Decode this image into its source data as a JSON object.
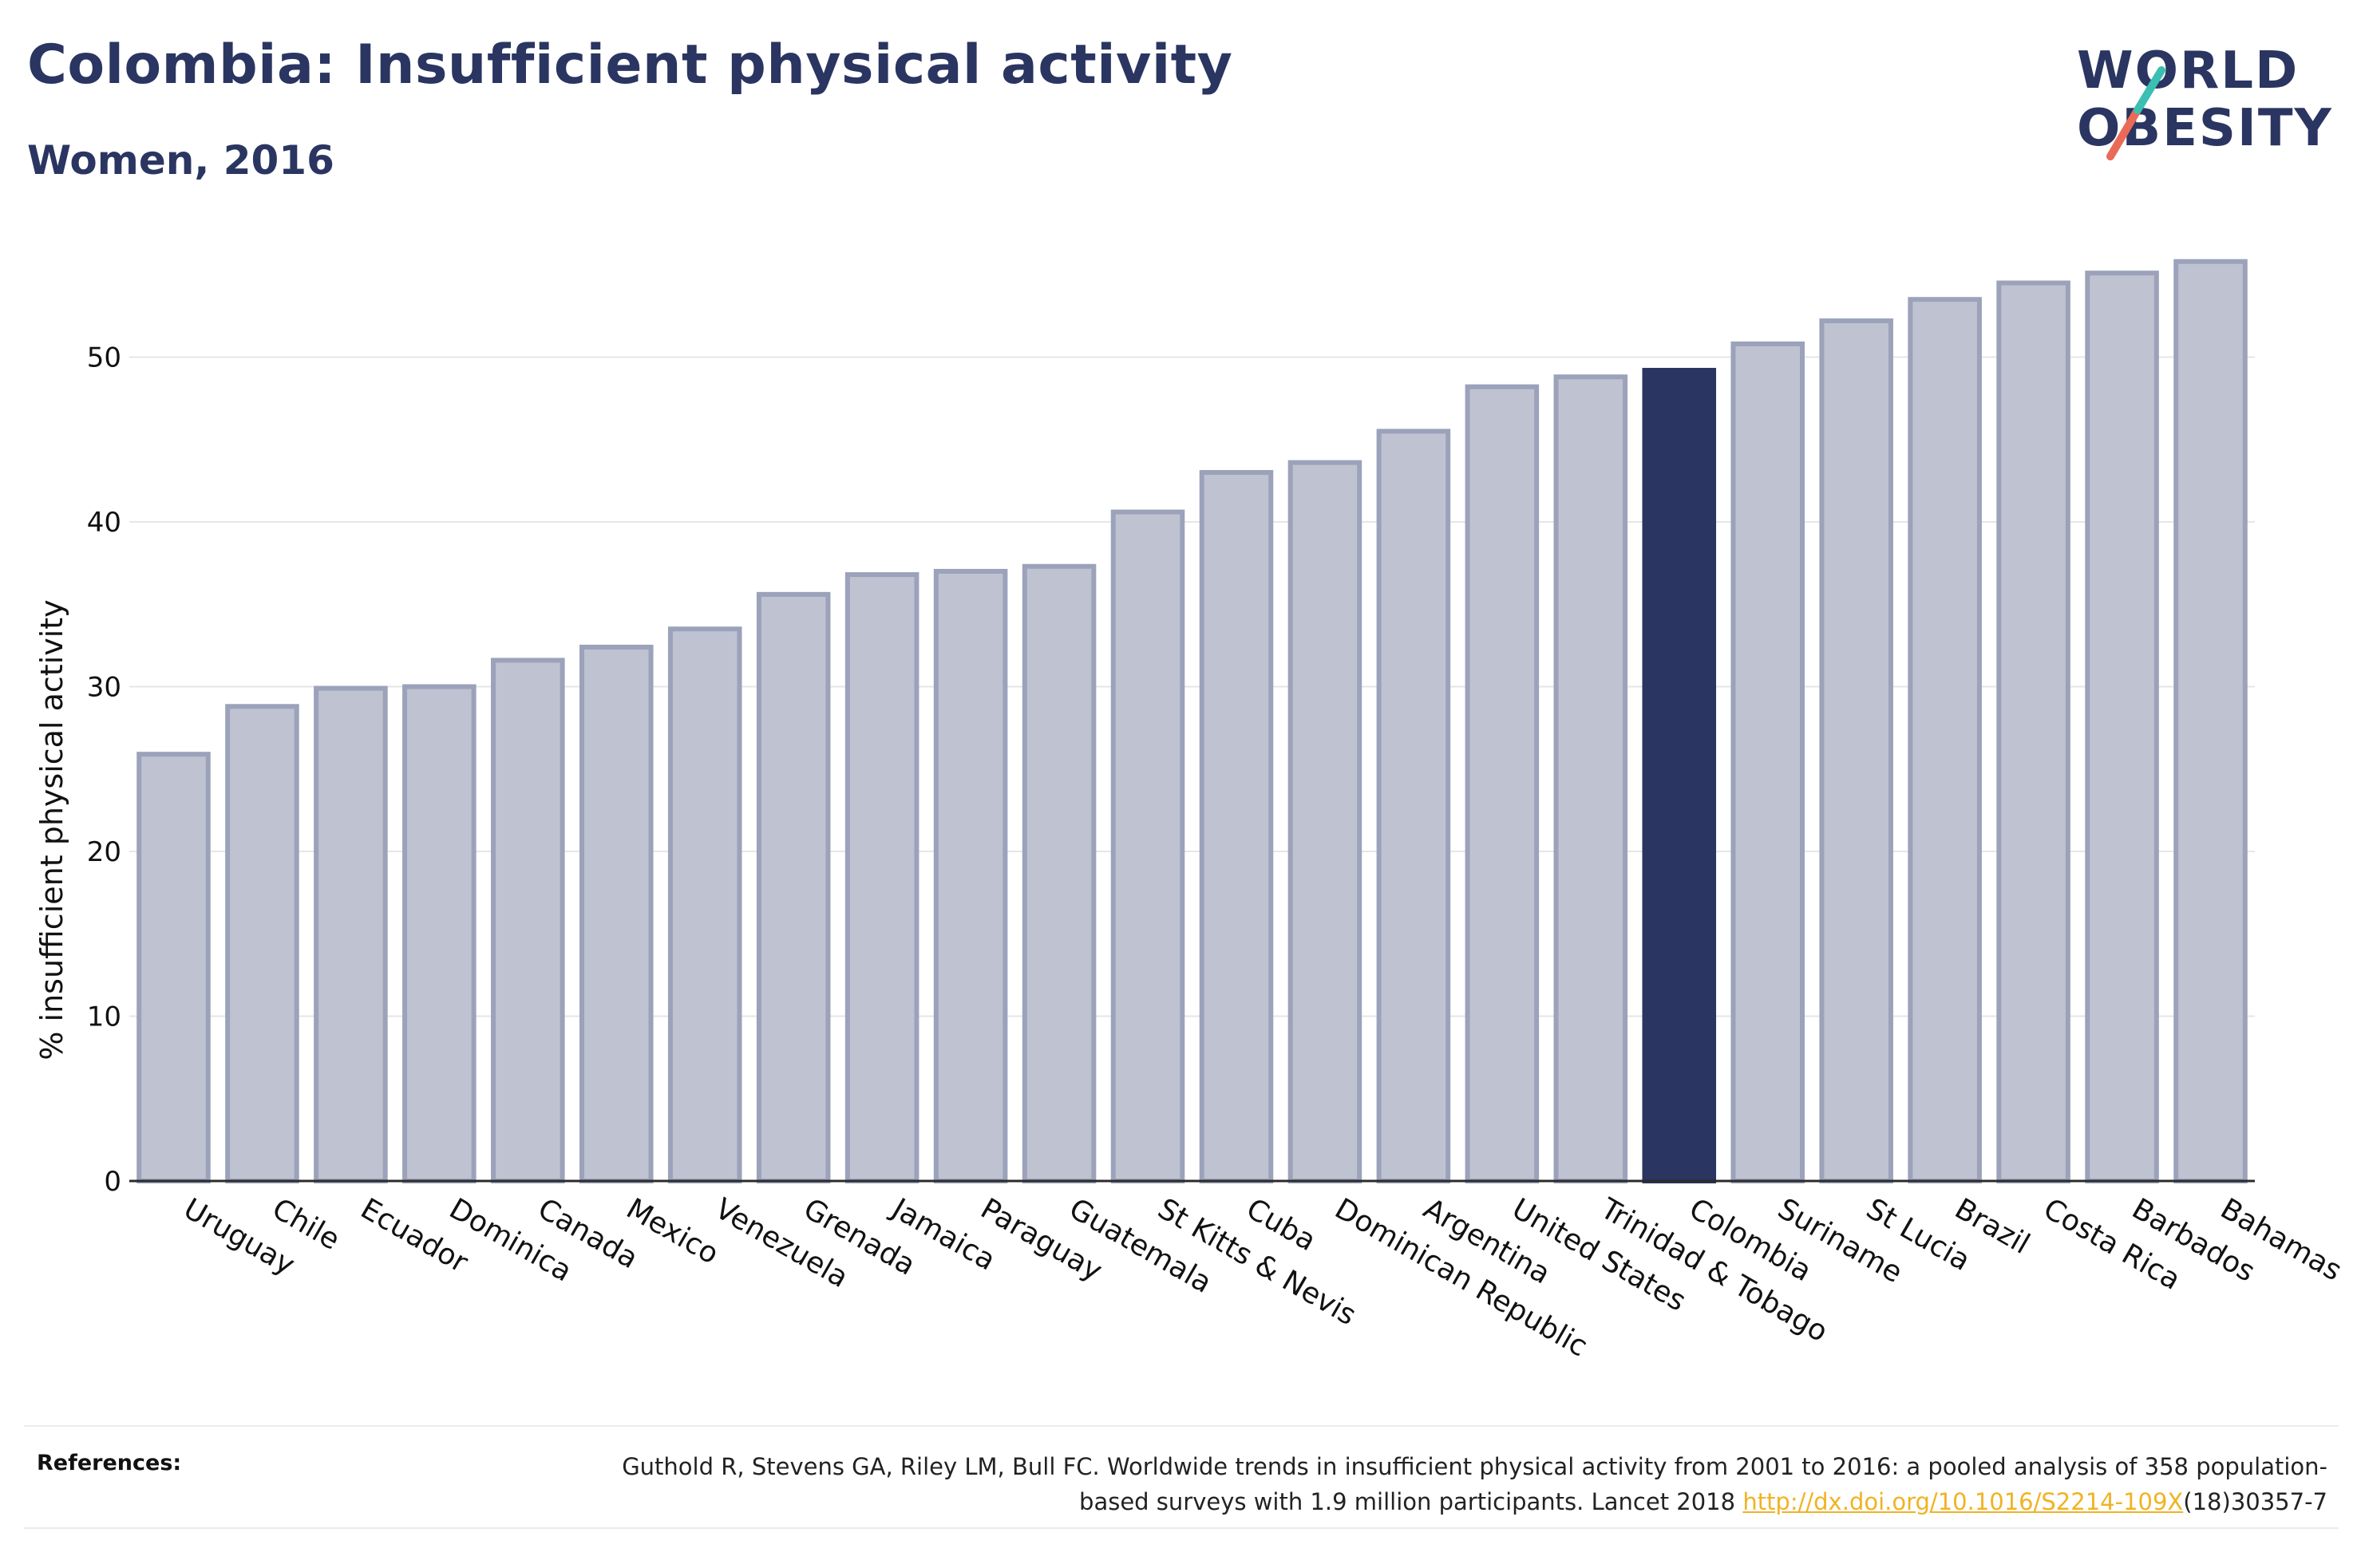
{
  "header": {
    "title": "Colombia: Insufficient physical activity",
    "subtitle": "Women, 2016"
  },
  "logo": {
    "line1": "WORLD",
    "line2": "OBESITY"
  },
  "colors": {
    "bar": "#bfc3d1",
    "bar_stroke": "#9ba2ba",
    "highlight": "#2a3561",
    "text": "#2a3561",
    "link": "#f0b323",
    "logo_teal": "#3bbfb3",
    "logo_coral": "#ea6a57"
  },
  "chart_data": {
    "type": "bar",
    "title": "",
    "xlabel": "",
    "ylabel": "% insufficient physical activity",
    "ylim": [
      0,
      57
    ],
    "yticks": [
      0,
      10,
      20,
      30,
      40,
      50
    ],
    "grid": true,
    "highlight": "Colombia",
    "categories": [
      "Uruguay",
      "Chile",
      "Ecuador",
      "Dominica",
      "Canada",
      "Mexico",
      "Venezuela",
      "Grenada",
      "Jamaica",
      "Paraguay",
      "Guatemala",
      "St Kitts & Nevis",
      "Cuba",
      "Dominican Republic",
      "Argentina",
      "United States",
      "Trinidad & Tobago",
      "Colombia",
      "Suriname",
      "St Lucia",
      "Brazil",
      "Costa Rica",
      "Barbados",
      "Bahamas"
    ],
    "values": [
      25.9,
      28.8,
      29.9,
      30.0,
      31.6,
      32.4,
      33.5,
      35.6,
      36.8,
      37.0,
      37.3,
      40.6,
      43.0,
      43.6,
      45.5,
      48.2,
      48.8,
      49.2,
      50.8,
      52.2,
      53.5,
      54.5,
      55.1,
      55.8
    ]
  },
  "references": {
    "label": "References:",
    "text_before": "Guthold R, Stevens GA, Riley LM, Bull FC. Worldwide trends in insufficient physical activity from 2001 to 2016: a pooled analysis of 358 population-based surveys with 1.9 million participants. Lancet 2018 ",
    "link_text": "http://dx.doi.org/10.1016/S2214-109X",
    "text_after": "(18)30357-7"
  }
}
